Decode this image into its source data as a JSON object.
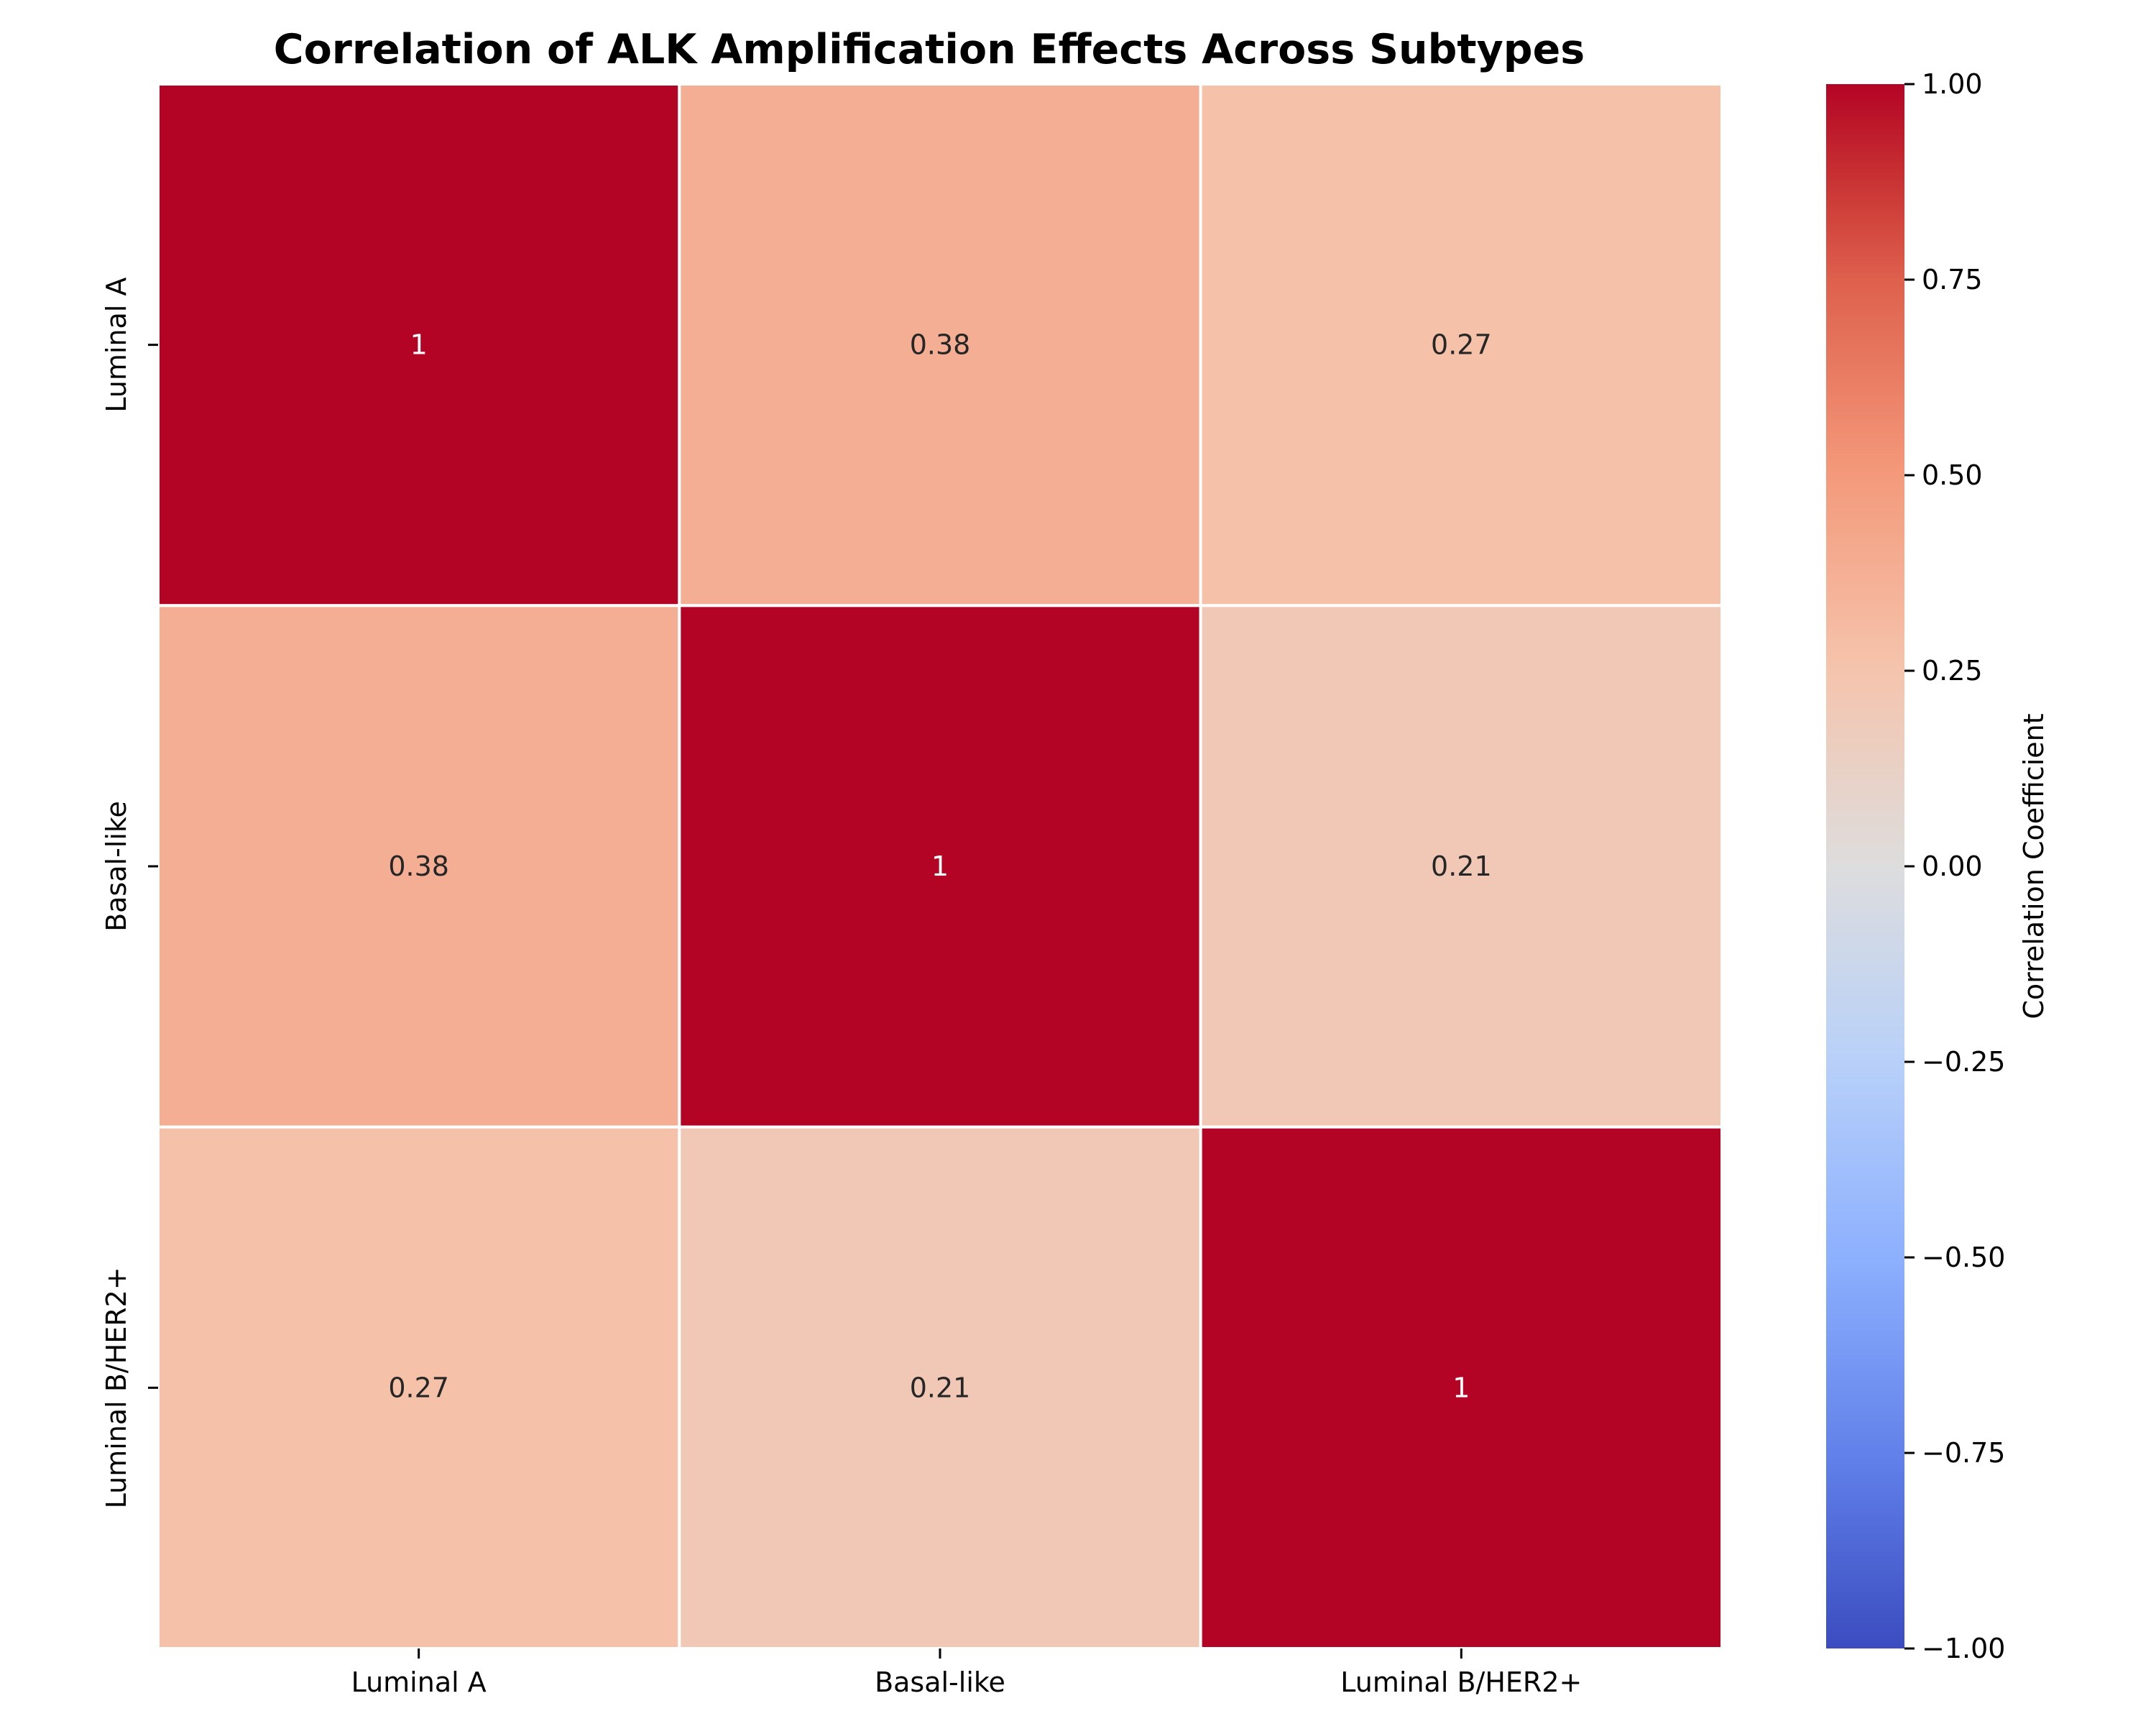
{
  "chart_data": {
    "type": "heatmap",
    "title": "Correlation of ALK Amplification Effects Across Subtypes",
    "x_categories": [
      "Luminal A",
      "Basal-like",
      "Luminal B/HER2+"
    ],
    "y_categories": [
      "Luminal A",
      "Basal-like",
      "Luminal B/HER2+"
    ],
    "values": [
      [
        1,
        0.38,
        0.27
      ],
      [
        0.38,
        1,
        0.21
      ],
      [
        0.27,
        0.21,
        1
      ]
    ],
    "cell_labels": [
      [
        "1",
        "0.38",
        "0.27"
      ],
      [
        "0.38",
        "1",
        "0.21"
      ],
      [
        "0.27",
        "0.21",
        "1"
      ]
    ],
    "colorbar": {
      "label": "Correlation Coefficient",
      "range": [
        -1,
        1
      ],
      "ticks": [
        1.0,
        0.75,
        0.5,
        0.25,
        0.0,
        -0.25,
        -0.5,
        -0.75,
        -1.0
      ],
      "tick_labels": [
        "1.00",
        "0.75",
        "0.50",
        "0.25",
        "0.00",
        "−0.25",
        "−0.50",
        "−0.75",
        "−1.00"
      ],
      "colormap": "coolwarm"
    },
    "grid": false
  }
}
